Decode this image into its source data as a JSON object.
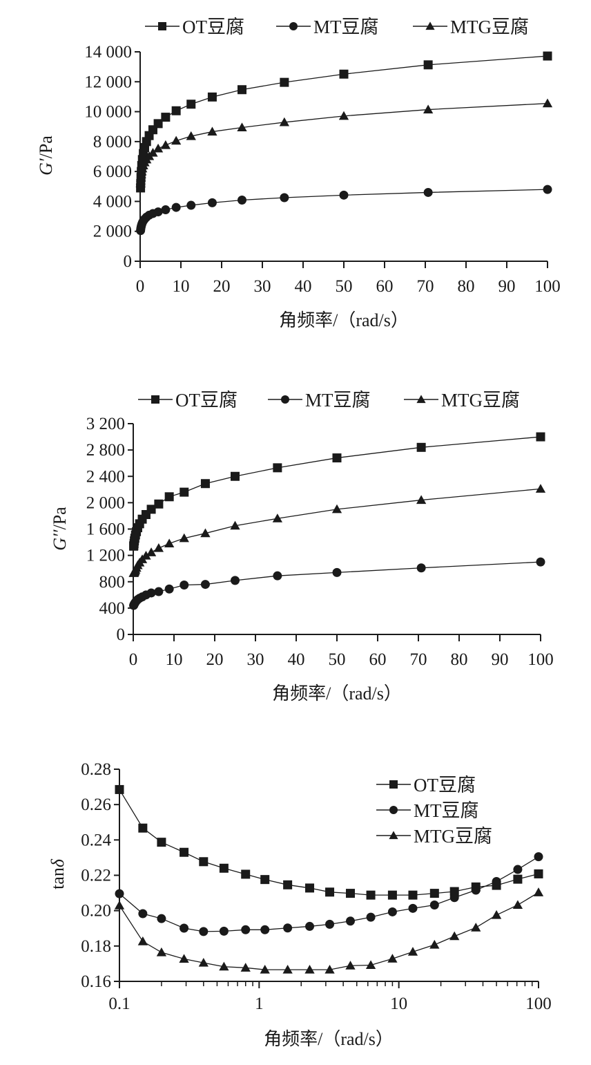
{
  "chart_data": [
    {
      "type": "line",
      "x_scale": "linear",
      "xlabel": "角频率/（rad/s）",
      "ylabel_italic": "G′",
      "ylabel_rest": "/Pa",
      "xlim": [
        0,
        100
      ],
      "ylim": [
        0,
        14000
      ],
      "xticks": [
        0,
        10,
        20,
        30,
        40,
        50,
        60,
        70,
        80,
        90,
        100
      ],
      "xtick_labels": [
        "0",
        "10",
        "20",
        "30",
        "40",
        "50",
        "60",
        "70",
        "80",
        "90",
        "100"
      ],
      "yticks": [
        0,
        2000,
        4000,
        6000,
        8000,
        10000,
        12000,
        14000
      ],
      "ytick_labels": [
        "0",
        "2 000",
        "4 000",
        "6 000",
        "8 000",
        "10 000",
        "12 000",
        "14 000"
      ],
      "legend_position": "top",
      "x": [
        0.1,
        0.14,
        0.2,
        0.28,
        0.39,
        0.55,
        0.78,
        1.1,
        1.56,
        2.21,
        3.13,
        4.42,
        6.25,
        8.84,
        12.5,
        17.7,
        25,
        35.4,
        50,
        70.7,
        100
      ],
      "series": [
        {
          "name": "OT豆腐",
          "marker": "square",
          "values": [
            4900,
            5200,
            5600,
            6000,
            6400,
            6800,
            7200,
            7600,
            8000,
            8400,
            8790,
            9200,
            9630,
            10060,
            10500,
            10980,
            11470,
            11960,
            12510,
            13130,
            13720
          ]
        },
        {
          "name": "MT豆腐",
          "marker": "circle",
          "values": [
            2050,
            2150,
            2250,
            2350,
            2460,
            2580,
            2700,
            2820,
            2950,
            3080,
            3190,
            3300,
            3440,
            3600,
            3740,
            3910,
            4090,
            4250,
            4420,
            4600,
            4800
          ]
        },
        {
          "name": "MTG豆腐",
          "marker": "triangle",
          "values": [
            5200,
            5400,
            5600,
            5800,
            6000,
            6200,
            6400,
            6600,
            6800,
            7020,
            7250,
            7530,
            7760,
            8050,
            8360,
            8660,
            8940,
            9290,
            9710,
            10140,
            10550
          ]
        }
      ]
    },
    {
      "type": "line",
      "x_scale": "linear",
      "xlabel": "角频率/（rad/s）",
      "ylabel_italic": "G′′",
      "ylabel_rest": "/Pa",
      "xlim": [
        0,
        100
      ],
      "ylim": [
        0,
        3200
      ],
      "xticks": [
        0,
        10,
        20,
        30,
        40,
        50,
        60,
        70,
        80,
        90,
        100
      ],
      "xtick_labels": [
        "0",
        "10",
        "20",
        "30",
        "40",
        "50",
        "60",
        "70",
        "80",
        "90",
        "100"
      ],
      "yticks": [
        0,
        400,
        800,
        1200,
        1600,
        2000,
        2400,
        2800,
        3200
      ],
      "ytick_labels": [
        "0",
        "400",
        "800",
        "1 200",
        "1 600",
        "2 000",
        "2 400",
        "2 800",
        "3 200"
      ],
      "legend_position": "top",
      "x": [
        0.1,
        0.14,
        0.2,
        0.28,
        0.39,
        0.55,
        0.78,
        1.1,
        1.56,
        2.21,
        3.13,
        4.42,
        6.25,
        8.84,
        12.5,
        17.7,
        25,
        35.4,
        50,
        70.7,
        100
      ],
      "series": [
        {
          "name": "OT豆腐",
          "marker": "square",
          "values": [
            1340,
            1350,
            1380,
            1420,
            1460,
            1510,
            1560,
            1620,
            1680,
            1750,
            1820,
            1900,
            1980,
            2090,
            2160,
            2290,
            2400,
            2530,
            2680,
            2840,
            3000
          ]
        },
        {
          "name": "MT豆腐",
          "marker": "circle",
          "values": [
            440,
            445,
            455,
            465,
            475,
            490,
            510,
            530,
            550,
            570,
            600,
            630,
            650,
            690,
            750,
            760,
            820,
            890,
            940,
            1010,
            1100
          ]
        },
        {
          "name": "MTG豆腐",
          "marker": "triangle",
          "values": [
            930,
            935,
            940,
            950,
            960,
            980,
            1010,
            1050,
            1090,
            1140,
            1195,
            1245,
            1310,
            1380,
            1460,
            1535,
            1650,
            1760,
            1900,
            2040,
            2210
          ]
        }
      ]
    },
    {
      "type": "line",
      "x_scale": "log",
      "xlabel": "角频率/（rad/s）",
      "ylabel_italic": "δ",
      "ylabel_rest": "tan",
      "xlim": [
        0.1,
        100
      ],
      "ylim": [
        0.16,
        0.28
      ],
      "xticks": [
        0.1,
        1,
        10,
        100
      ],
      "xtick_labels": [
        "0.1",
        "1",
        "10",
        "100"
      ],
      "yticks": [
        0.16,
        0.18,
        0.2,
        0.22,
        0.24,
        0.26,
        0.28
      ],
      "ytick_labels": [
        "0.16",
        "0.18",
        "0.20",
        "0.22",
        "0.24",
        "0.26",
        "0.28"
      ],
      "legend_position": "top-right",
      "x": [
        0.1,
        0.147,
        0.2,
        0.29,
        0.4,
        0.56,
        0.8,
        1.1,
        1.6,
        2.3,
        3.2,
        4.5,
        6.3,
        9,
        12.6,
        18,
        25,
        35.6,
        50,
        71,
        100
      ],
      "series": [
        {
          "name": "OT豆腐",
          "marker": "square",
          "values": [
            0.2685,
            0.2467,
            0.2387,
            0.233,
            0.2277,
            0.224,
            0.2206,
            0.2176,
            0.2146,
            0.2128,
            0.2105,
            0.2098,
            0.2088,
            0.2088,
            0.2088,
            0.2098,
            0.2108,
            0.2134,
            0.2143,
            0.2178,
            0.2208
          ]
        },
        {
          "name": "MT豆腐",
          "marker": "circle",
          "values": [
            0.2096,
            0.1983,
            0.1955,
            0.1901,
            0.1882,
            0.1884,
            0.1892,
            0.1892,
            0.1902,
            0.1911,
            0.1923,
            0.1941,
            0.1963,
            0.1993,
            0.2013,
            0.2032,
            0.2074,
            0.2116,
            0.2165,
            0.2233,
            0.2305
          ]
        },
        {
          "name": "MTG豆腐",
          "marker": "triangle",
          "values": [
            0.2029,
            0.1826,
            0.1764,
            0.1727,
            0.1705,
            0.1683,
            0.1677,
            0.1666,
            0.1666,
            0.1666,
            0.1666,
            0.1689,
            0.1692,
            0.1728,
            0.1767,
            0.1807,
            0.1855,
            0.1904,
            0.1975,
            0.2032,
            0.2103
          ]
        }
      ]
    }
  ]
}
